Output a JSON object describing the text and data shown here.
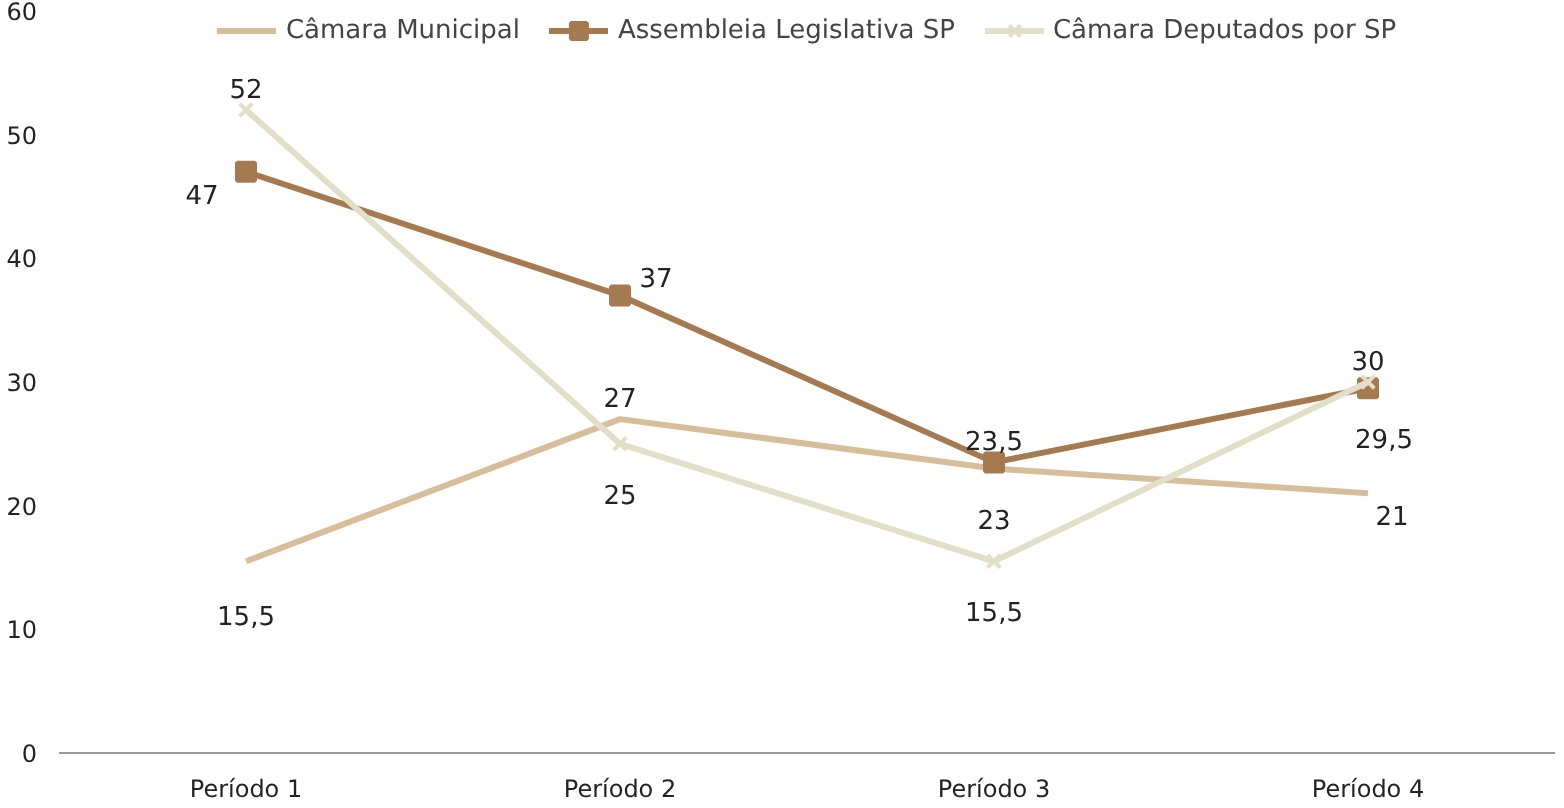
{
  "chart_data": {
    "type": "line",
    "categories": [
      "Período 1",
      "Período 2",
      "Período 3",
      "Período 4"
    ],
    "series": [
      {
        "name": "Câmara Municipal",
        "color": "#d8bd9b",
        "marker": "none",
        "values": [
          15.5,
          27,
          23,
          21
        ],
        "value_labels": [
          "15,5",
          "27",
          "23",
          "21"
        ]
      },
      {
        "name": "Assembleia Legislativa SP",
        "color": "#a57a50",
        "marker": "square",
        "values": [
          47,
          37,
          23.5,
          29.5
        ],
        "value_labels": [
          "47",
          "37",
          "23,5",
          "29,5"
        ]
      },
      {
        "name": "Câmara Deputados por SP",
        "color": "#e2dfc8",
        "marker": "cross",
        "values": [
          52,
          25,
          15.5,
          30
        ],
        "value_labels": [
          "52",
          "25",
          "15,5",
          "30"
        ]
      }
    ],
    "ylim": [
      0,
      60
    ],
    "yticks": [
      0,
      10,
      20,
      30,
      40,
      50,
      60
    ],
    "grid": false,
    "legend": "top"
  }
}
